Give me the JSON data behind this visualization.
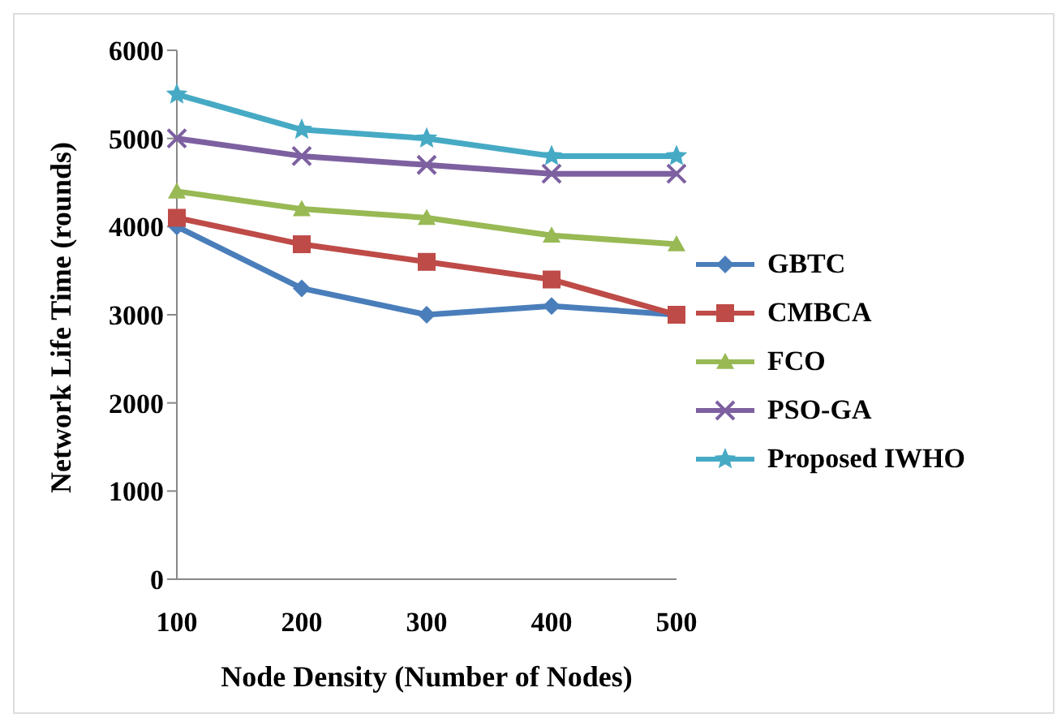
{
  "chart_data": {
    "type": "line",
    "xlabel": "Node Density (Number of Nodes)",
    "ylabel": "Network Life Time (rounds)",
    "categories": [
      "100",
      "200",
      "300",
      "400",
      "500"
    ],
    "ylim": [
      0,
      6000
    ],
    "yticks": [
      0,
      1000,
      2000,
      3000,
      4000,
      5000,
      6000
    ],
    "grid": false,
    "legend": "right",
    "series": [
      {
        "name": "GBTC",
        "color": "#4a7ebb",
        "marker": "diamond",
        "values": [
          4000,
          3300,
          3000,
          3100,
          3000
        ]
      },
      {
        "name": "CMBCA",
        "color": "#be4b48",
        "marker": "square",
        "values": [
          4100,
          3800,
          3600,
          3400,
          3000
        ]
      },
      {
        "name": "FCO",
        "color": "#98b954",
        "marker": "triangle",
        "values": [
          4400,
          4200,
          4100,
          3900,
          3800
        ]
      },
      {
        "name": "PSO-GA",
        "color": "#7d60a0",
        "marker": "cross",
        "values": [
          5000,
          4800,
          4700,
          4600,
          4600
        ]
      },
      {
        "name": "Proposed IWHO",
        "color": "#46aac5",
        "marker": "star",
        "values": [
          5500,
          5100,
          5000,
          4800,
          4800
        ]
      }
    ]
  }
}
